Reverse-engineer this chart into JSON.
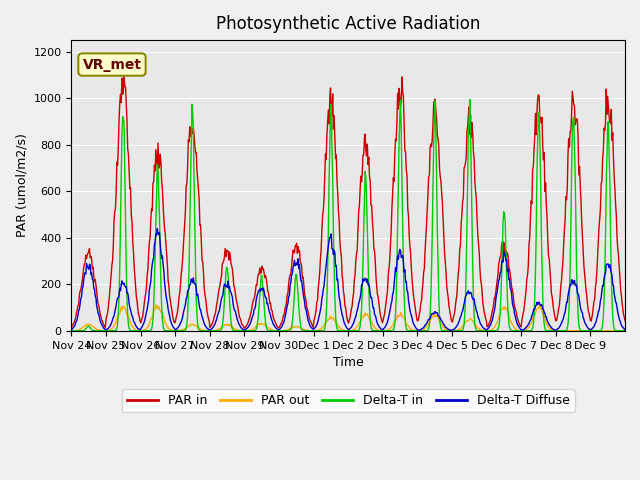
{
  "title": "Photosynthetic Active Radiation",
  "ylabel": "PAR (umol/m2/s)",
  "xlabel": "Time",
  "ylim": [
    0,
    1250
  ],
  "background_color": "#e8e8e8",
  "label_box_text": "VR_met",
  "legend_labels": [
    "PAR in",
    "PAR out",
    "Delta-T in",
    "Delta-T Diffuse"
  ],
  "line_colors": [
    "#cc0000",
    "#ffaa00",
    "#00cc00",
    "#0000cc"
  ],
  "xtick_labels": [
    "Nov 24",
    "Nov 25",
    "Nov 26",
    "Nov 27",
    "Nov 28",
    "Nov 29",
    "Nov 30",
    "Dec 1",
    "Dec 2",
    "Dec 3",
    "Dec 4",
    "Dec 5",
    "Dec 6",
    "Dec 7",
    "Dec 8",
    "Dec 9"
  ],
  "ytick_values": [
    0,
    200,
    400,
    600,
    800,
    1000,
    1200
  ],
  "grid": true
}
